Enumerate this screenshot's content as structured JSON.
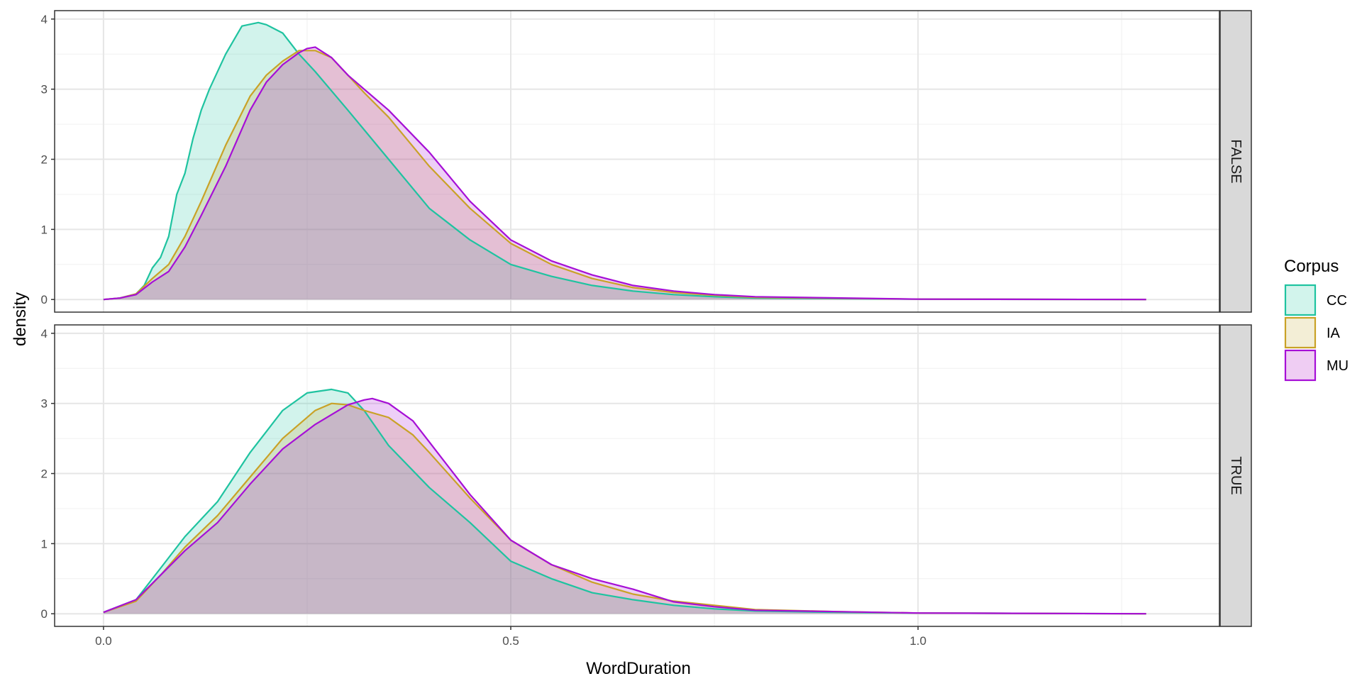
{
  "chart_data": {
    "type": "area",
    "xlabel": "WordDuration",
    "ylabel": "density",
    "xlim": [
      -0.06,
      1.37
    ],
    "ylim": [
      -0.18,
      4.12
    ],
    "x_ticks": [
      0.0,
      0.5,
      1.0
    ],
    "x_tick_labels": [
      "0.0",
      "0.5",
      "1.0"
    ],
    "y_ticks": [
      0,
      1,
      2,
      3,
      4
    ],
    "y_tick_labels": [
      "0",
      "1",
      "2",
      "3",
      "4"
    ],
    "grid": true,
    "legend": {
      "title": "Corpus",
      "placement": "right",
      "entries": [
        {
          "label": "CC",
          "color": "#1fc3a0",
          "fill": "#d2f4ec"
        },
        {
          "label": "IA",
          "color": "#c9a227",
          "fill": "#f3eed6"
        },
        {
          "label": "MU",
          "color": "#a60fd6",
          "fill": "#efcdf3"
        }
      ]
    },
    "fill_opacity": 0.2,
    "panels": [
      {
        "strip": "FALSE",
        "series": [
          {
            "name": "CC",
            "x": [
              0.0,
              0.02,
              0.04,
              0.05,
              0.06,
              0.07,
              0.08,
              0.09,
              0.1,
              0.11,
              0.12,
              0.13,
              0.15,
              0.17,
              0.19,
              0.2,
              0.22,
              0.24,
              0.26,
              0.3,
              0.35,
              0.4,
              0.45,
              0.5,
              0.55,
              0.6,
              0.65,
              0.7,
              0.75,
              0.8,
              1.0,
              1.28
            ],
            "y": [
              0.0,
              0.02,
              0.08,
              0.2,
              0.45,
              0.6,
              0.9,
              1.5,
              1.8,
              2.3,
              2.7,
              3.0,
              3.5,
              3.9,
              3.95,
              3.92,
              3.8,
              3.5,
              3.25,
              2.7,
              2.0,
              1.3,
              0.85,
              0.5,
              0.33,
              0.2,
              0.12,
              0.07,
              0.04,
              0.02,
              0.005,
              0.0
            ]
          },
          {
            "name": "IA",
            "x": [
              0.0,
              0.02,
              0.04,
              0.06,
              0.08,
              0.1,
              0.12,
              0.15,
              0.18,
              0.2,
              0.22,
              0.24,
              0.26,
              0.28,
              0.3,
              0.32,
              0.35,
              0.4,
              0.45,
              0.5,
              0.55,
              0.6,
              0.65,
              0.7,
              0.75,
              0.8,
              1.0,
              1.28
            ],
            "y": [
              0.0,
              0.02,
              0.08,
              0.3,
              0.5,
              0.9,
              1.4,
              2.2,
              2.9,
              3.2,
              3.4,
              3.55,
              3.55,
              3.45,
              3.2,
              2.95,
              2.6,
              1.9,
              1.3,
              0.8,
              0.5,
              0.3,
              0.17,
              0.1,
              0.06,
              0.03,
              0.005,
              0.0
            ]
          },
          {
            "name": "MU",
            "x": [
              0.0,
              0.02,
              0.04,
              0.06,
              0.08,
              0.1,
              0.12,
              0.15,
              0.18,
              0.2,
              0.22,
              0.24,
              0.25,
              0.26,
              0.28,
              0.3,
              0.32,
              0.35,
              0.4,
              0.45,
              0.5,
              0.55,
              0.6,
              0.65,
              0.7,
              0.75,
              0.8,
              1.0,
              1.28
            ],
            "y": [
              0.0,
              0.02,
              0.07,
              0.25,
              0.4,
              0.75,
              1.2,
              1.9,
              2.7,
              3.1,
              3.35,
              3.52,
              3.58,
              3.6,
              3.45,
              3.2,
              3.0,
              2.7,
              2.1,
              1.4,
              0.85,
              0.55,
              0.35,
              0.2,
              0.12,
              0.07,
              0.04,
              0.005,
              0.0
            ]
          }
        ]
      },
      {
        "strip": "TRUE",
        "series": [
          {
            "name": "CC",
            "x": [
              0.0,
              0.04,
              0.07,
              0.1,
              0.14,
              0.18,
              0.22,
              0.25,
              0.28,
              0.3,
              0.32,
              0.35,
              0.4,
              0.45,
              0.5,
              0.55,
              0.6,
              0.65,
              0.7,
              0.75,
              0.8,
              0.9,
              1.0,
              1.28
            ],
            "y": [
              0.02,
              0.2,
              0.65,
              1.1,
              1.6,
              2.3,
              2.9,
              3.15,
              3.2,
              3.15,
              2.9,
              2.4,
              1.8,
              1.3,
              0.75,
              0.5,
              0.3,
              0.2,
              0.12,
              0.07,
              0.04,
              0.02,
              0.01,
              0.0
            ]
          },
          {
            "name": "IA",
            "x": [
              0.0,
              0.04,
              0.07,
              0.1,
              0.14,
              0.18,
              0.22,
              0.26,
              0.28,
              0.3,
              0.32,
              0.35,
              0.38,
              0.4,
              0.45,
              0.5,
              0.55,
              0.6,
              0.65,
              0.7,
              0.75,
              0.8,
              0.9,
              1.0,
              1.28
            ],
            "y": [
              0.02,
              0.18,
              0.55,
              0.95,
              1.4,
              1.95,
              2.5,
              2.9,
              3.0,
              2.98,
              2.9,
              2.8,
              2.55,
              2.3,
              1.65,
              1.05,
              0.7,
              0.45,
              0.28,
              0.18,
              0.12,
              0.06,
              0.03,
              0.01,
              0.0
            ]
          },
          {
            "name": "MU",
            "x": [
              0.0,
              0.04,
              0.07,
              0.1,
              0.14,
              0.18,
              0.22,
              0.26,
              0.3,
              0.32,
              0.33,
              0.35,
              0.38,
              0.4,
              0.45,
              0.5,
              0.55,
              0.6,
              0.65,
              0.7,
              0.75,
              0.8,
              0.9,
              1.0,
              1.28
            ],
            "y": [
              0.02,
              0.2,
              0.55,
              0.9,
              1.3,
              1.85,
              2.35,
              2.7,
              2.98,
              3.05,
              3.07,
              3.0,
              2.75,
              2.45,
              1.7,
              1.05,
              0.7,
              0.5,
              0.35,
              0.17,
              0.1,
              0.05,
              0.03,
              0.01,
              0.0
            ]
          }
        ]
      }
    ]
  }
}
